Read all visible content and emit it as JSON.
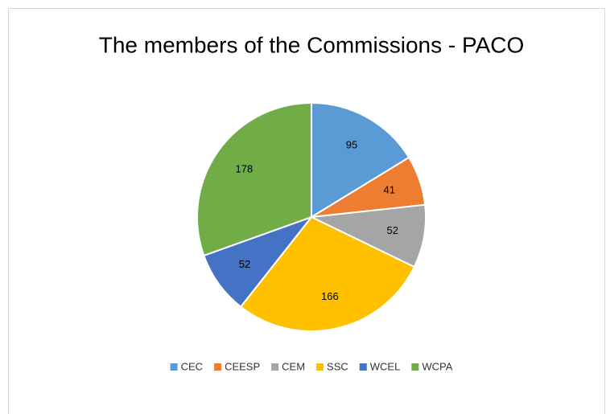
{
  "chart_data": {
    "type": "pie",
    "title": "The members of the Commissions - PACO",
    "categories": [
      "CEC",
      "CEESP",
      "CEM",
      "SSC",
      "WCEL",
      "WCPA"
    ],
    "values": [
      95,
      41,
      52,
      166,
      52,
      178
    ],
    "colors": [
      "#5b9bd5",
      "#ed7d31",
      "#a5a5a5",
      "#ffc000",
      "#4472c4",
      "#70ad47"
    ],
    "legend": "bottom"
  }
}
